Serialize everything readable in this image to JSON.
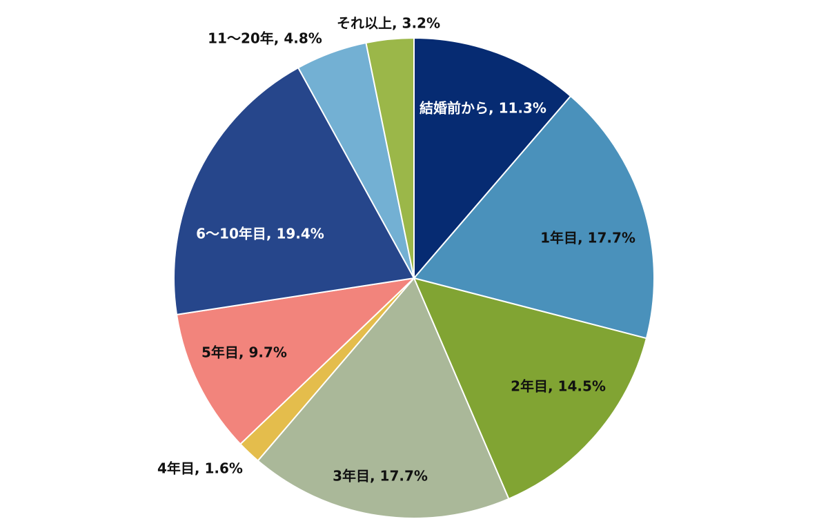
{
  "chart_data": {
    "type": "pie",
    "slices": [
      {
        "label": "結婚前から, 11.3%",
        "category": "結婚前から",
        "value": 11.3,
        "color": "#062b72",
        "label_color": "#ffffff"
      },
      {
        "label": "1年目, 17.7%",
        "category": "1年目",
        "value": 17.7,
        "color": "#4a91bb",
        "label_color": "#111111"
      },
      {
        "label": "2年目, 14.5%",
        "category": "2年目",
        "value": 14.5,
        "color": "#81a433",
        "label_color": "#111111"
      },
      {
        "label": "3年目, 17.7%",
        "category": "3年目",
        "value": 17.7,
        "color": "#aab899",
        "label_color": "#111111"
      },
      {
        "label": "4年目, 1.6%",
        "category": "4年目",
        "value": 1.6,
        "color": "#e4bd4c",
        "label_color": "#111111"
      },
      {
        "label": "5年目, 9.7%",
        "category": "5年目",
        "value": 9.7,
        "color": "#f2847c",
        "label_color": "#111111"
      },
      {
        "label": "6～10年目, 19.4%",
        "category": "6～10年目",
        "value": 19.4,
        "color": "#26468b",
        "label_color": "#ffffff"
      },
      {
        "label": "11～20年, 4.8%",
        "category": "11～20年",
        "value": 4.8,
        "color": "#73b0d3",
        "label_color": "#111111"
      },
      {
        "label": "それ以上, 3.2%",
        "category": "それ以上",
        "value": 3.2,
        "color": "#9bb749",
        "label_color": "#111111"
      }
    ]
  }
}
